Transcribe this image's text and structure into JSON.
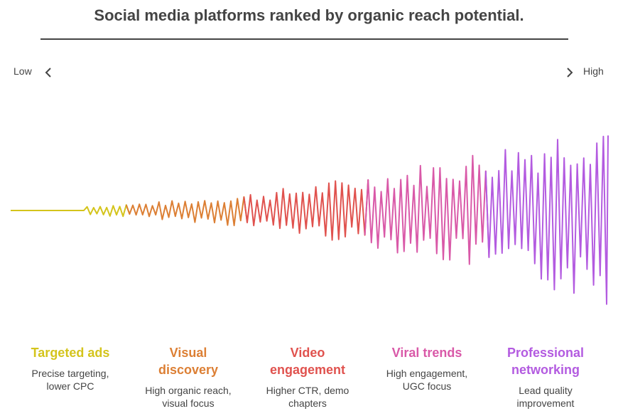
{
  "title": "Social media platforms ranked by organic reach potential.",
  "axis": {
    "low": "Low",
    "high": "High"
  },
  "stages": [
    {
      "name": "Targeted ads",
      "desc": "Precise targeting, lower CPC",
      "color": "#d4c41c"
    },
    {
      "name": "Visual discovery",
      "desc": "High organic reach, visual focus",
      "color": "#dc7f34"
    },
    {
      "name": "Video engagement",
      "desc": "Higher CTR, demo chapters",
      "color": "#e0524e"
    },
    {
      "name": "Viral trends",
      "desc": "High engagement, UGC focus",
      "color": "#d959a8"
    },
    {
      "name": "Professional networking",
      "desc": "Lead quality improvement",
      "color": "#b35be0"
    }
  ]
}
